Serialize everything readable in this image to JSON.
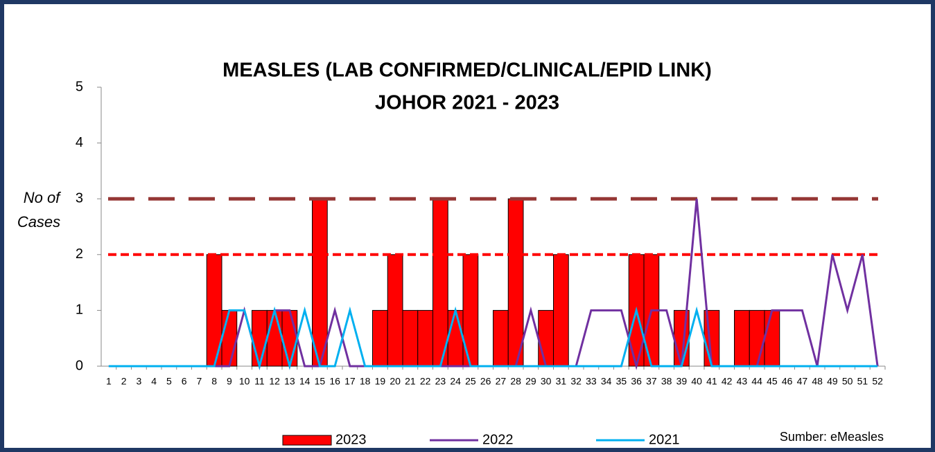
{
  "chart_data": {
    "type": "bar_line",
    "title": [
      "MEASLES (LAB CONFIRMED/CLINICAL/EPID LINK)",
      "JOHOR 2021 - 2023"
    ],
    "ylabel": [
      "No of",
      "Cases"
    ],
    "source": "Sumber: eMeasles",
    "categories": [
      "1",
      "2",
      "3",
      "4",
      "5",
      "6",
      "7",
      "8",
      "9",
      "10",
      "11",
      "12",
      "13",
      "14",
      "15",
      "16",
      "17",
      "18",
      "19",
      "20",
      "21",
      "22",
      "23",
      "24",
      "25",
      "26",
      "27",
      "28",
      "29",
      "30",
      "31",
      "32",
      "33",
      "34",
      "35",
      "36",
      "37",
      "38",
      "39",
      "40",
      "41",
      "42",
      "43",
      "44",
      "45",
      "46",
      "47",
      "48",
      "49",
      "50",
      "51",
      "52"
    ],
    "series": [
      {
        "name": "2023",
        "kind": "bar",
        "color": "#ff0000",
        "values": [
          0,
          0,
          0,
          0,
          0,
          0,
          0,
          2,
          1,
          0,
          1,
          1,
          1,
          0,
          3,
          0,
          0,
          0,
          1,
          2,
          1,
          1,
          3,
          1,
          2,
          0,
          1,
          3,
          0,
          1,
          2,
          0,
          0,
          0,
          0,
          2,
          2,
          0,
          1,
          0,
          1,
          0,
          1,
          1,
          1,
          0,
          0,
          0,
          0,
          0,
          0,
          0
        ]
      },
      {
        "name": "2022",
        "kind": "line",
        "color": "#7030a0",
        "values": [
          0,
          0,
          0,
          0,
          0,
          0,
          0,
          0,
          0,
          1,
          0,
          1,
          1,
          0,
          0,
          1,
          0,
          0,
          0,
          0,
          0,
          0,
          0,
          0,
          0,
          0,
          0,
          0,
          1,
          0,
          0,
          0,
          1,
          1,
          1,
          0,
          1,
          1,
          0,
          3,
          0,
          0,
          0,
          0,
          1,
          1,
          1,
          0,
          2,
          1,
          2,
          0
        ]
      },
      {
        "name": "2021",
        "kind": "line",
        "color": "#00b0f0",
        "values": [
          0,
          0,
          0,
          0,
          0,
          0,
          0,
          0,
          1,
          1,
          0,
          1,
          0,
          1,
          0,
          0,
          1,
          0,
          0,
          0,
          0,
          0,
          0,
          1,
          0,
          0,
          0,
          0,
          0,
          0,
          0,
          0,
          0,
          0,
          0,
          1,
          0,
          0,
          0,
          1,
          0,
          0,
          0,
          0,
          0,
          0,
          0,
          0,
          0,
          0,
          0,
          0
        ]
      }
    ],
    "reference_lines": [
      {
        "value": 3,
        "color": "#953735"
      },
      {
        "value": 2,
        "color": "#ff0000"
      }
    ],
    "ylim": [
      0,
      5
    ],
    "yticks": [
      0,
      1,
      2,
      3,
      4,
      5
    ]
  }
}
